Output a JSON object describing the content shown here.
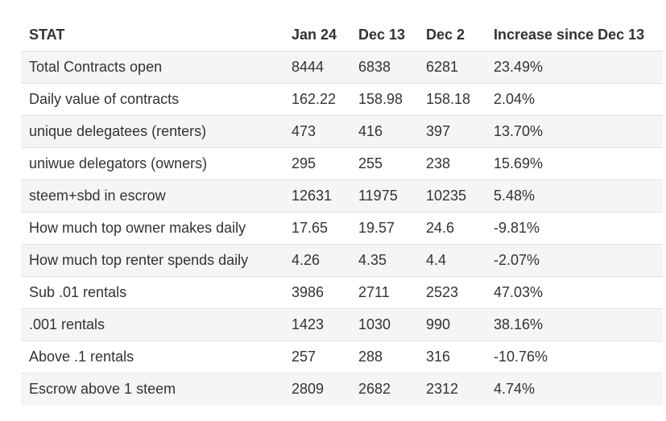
{
  "table": {
    "headers": [
      "STAT",
      "Jan 24",
      "Dec 13",
      "Dec 2",
      "Increase since Dec 13"
    ],
    "rows": [
      [
        "Total Contracts open",
        "8444",
        "6838",
        "6281",
        "23.49%"
      ],
      [
        "Daily value of contracts",
        "162.22",
        "158.98",
        "158.18",
        "2.04%"
      ],
      [
        "unique delegatees (renters)",
        "473",
        "416",
        "397",
        "13.70%"
      ],
      [
        "uniwue delegators (owners)",
        "295",
        "255",
        "238",
        "15.69%"
      ],
      [
        "steem+sbd in escrow",
        "12631",
        "11975",
        "10235",
        "5.48%"
      ],
      [
        "How much top owner makes daily",
        "17.65",
        "19.57",
        "24.6",
        "-9.81%"
      ],
      [
        "How much top renter spends daily",
        "4.26",
        "4.35",
        "4.4",
        "-2.07%"
      ],
      [
        "Sub .01 rentals",
        "3986",
        "2711",
        "2523",
        "47.03%"
      ],
      [
        ".001 rentals",
        "1423",
        "1030",
        "990",
        "38.16%"
      ],
      [
        "Above .1 rentals",
        "257",
        "288",
        "316",
        "-10.76%"
      ],
      [
        "Escrow above 1 steem",
        "2809",
        "2682",
        "2312",
        "4.74%"
      ]
    ]
  }
}
